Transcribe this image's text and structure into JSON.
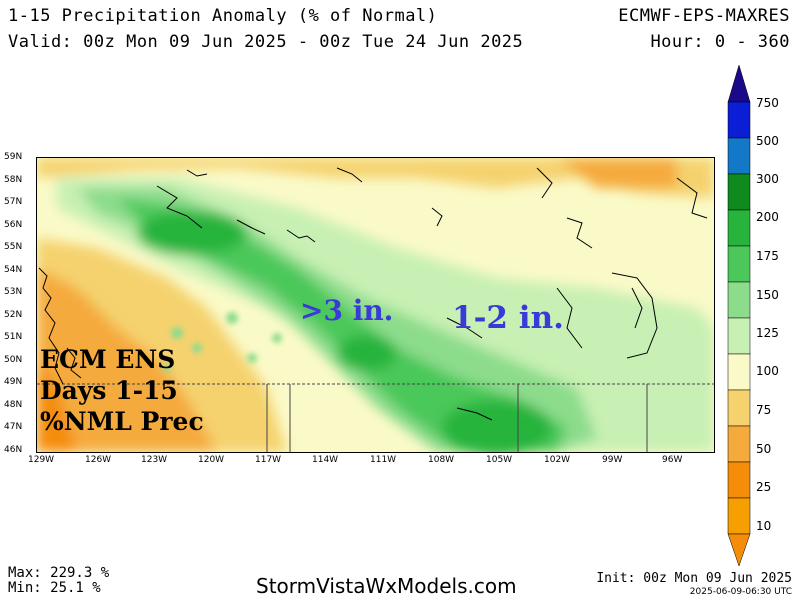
{
  "header": {
    "title": "1-15 Precipitation Anomaly (% of Normal)",
    "model": "ECMWF-EPS-MAXRES",
    "valid": "Valid: 00z Mon 09 Jun 2025 - 00z Tue 24 Jun 2025",
    "hours": "Hour: 0 - 360"
  },
  "map": {
    "lat_labels": [
      "59N",
      "58N",
      "57N",
      "56N",
      "55N",
      "54N",
      "53N",
      "52N",
      "51N",
      "50N",
      "49N",
      "48N",
      "47N",
      "46N"
    ],
    "lon_labels": [
      "129W",
      "126W",
      "123W",
      "120W",
      "117W",
      "114W",
      "111W",
      "108W",
      "105W",
      "102W",
      "99W",
      "96W"
    ],
    "annotations": {
      "left_line1": "ECM ENS",
      "left_line2": "Days 1-15",
      "left_line3": "%NML Prec",
      "center": ">3 in.",
      "right": "1-2 in."
    }
  },
  "colorbar": {
    "labels": [
      "750",
      "500",
      "300",
      "200",
      "175",
      "150",
      "125",
      "100",
      "75",
      "50",
      "25",
      "10"
    ],
    "colors": [
      "#1a0a8a",
      "#0a1ed6",
      "#1478c8",
      "#0f8a1e",
      "#28b43c",
      "#4cc85a",
      "#8cdc8c",
      "#c8f0b4",
      "#fafac8",
      "#f5d26e",
      "#f5aa3c",
      "#f58c0a",
      "#e66e00"
    ]
  },
  "footer": {
    "max": "Max: 229.3 %",
    "min": "Min: 25.1 %",
    "site": "StormVistaWxModels.com",
    "init": "Init: 00z Mon 09 Jun 2025",
    "stamp": "2025-06-09-06:30 UTC"
  }
}
